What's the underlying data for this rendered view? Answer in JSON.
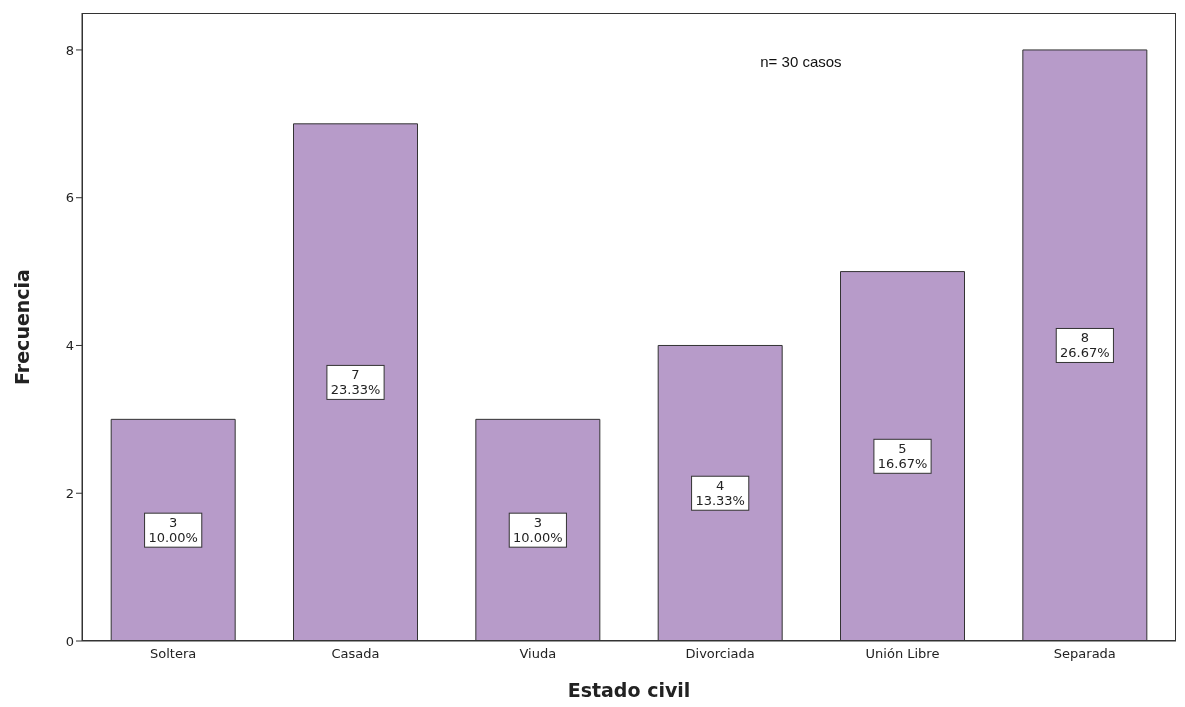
{
  "chart_data": {
    "type": "bar",
    "xlabel": "Estado civil",
    "ylabel": "Frecuencia",
    "categories": [
      "Soltera",
      "Casada",
      "Viuda",
      "Divorciada",
      "Unión Libre",
      "Separada"
    ],
    "values": [
      3,
      7,
      3,
      4,
      5,
      8
    ],
    "value_labels": [
      "3\n10.00%",
      "7\n23.33%",
      "3\n10.00%",
      "4\n13.33%",
      "5\n16.67%",
      "8\n26.67%"
    ],
    "color": "#b79bc9",
    "ylim": [
      0,
      8.5
    ],
    "yticks": [
      0,
      2,
      4,
      6,
      8
    ],
    "grid": false,
    "legend": false,
    "annotations": [
      "n= 30 casos"
    ]
  }
}
